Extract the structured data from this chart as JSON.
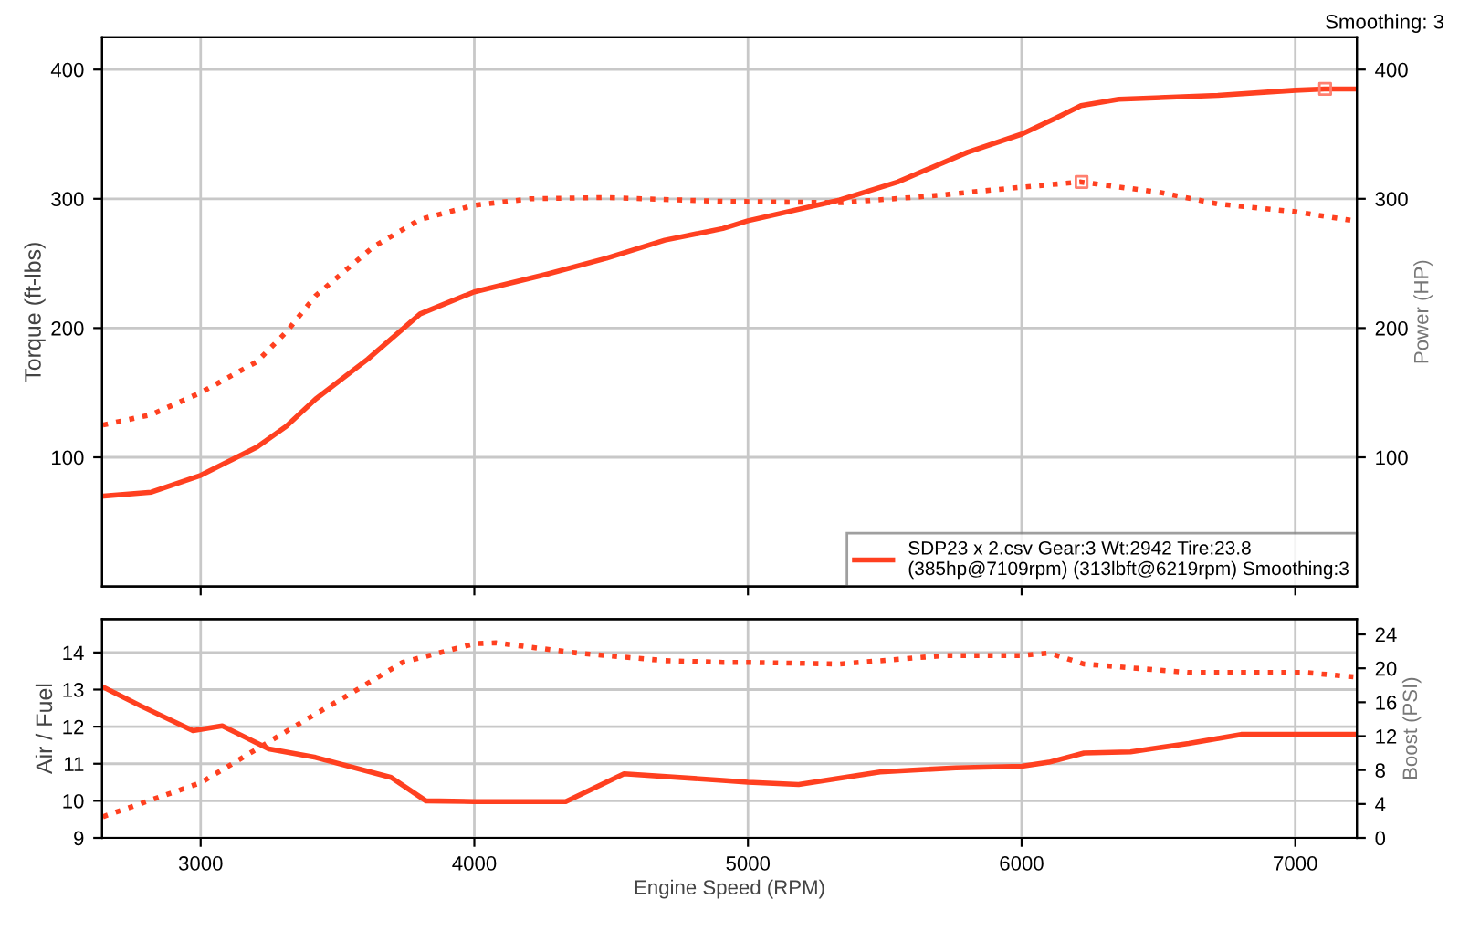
{
  "chart_data": [
    {
      "type": "line",
      "ylabel": "Torque (ft-lbs)",
      "y2label": "Power (HP)",
      "xlim": [
        2640,
        7225
      ],
      "xticks": [
        3000,
        4000,
        5000,
        6000,
        7000
      ],
      "ylim": [
        0,
        425
      ],
      "yticks": [
        100,
        200,
        300,
        400
      ],
      "y2lim": [
        0,
        425
      ],
      "y2ticks": [
        100,
        200,
        300,
        400
      ],
      "grid": true,
      "legend": "bottom right",
      "tick_labels": "y",
      "annotations": [
        "Smoothing: 3"
      ],
      "series": [
        {
          "line_style": "dotted",
          "color": "#ff4020",
          "x": [
            2643,
            2820,
            3000,
            3206,
            3313,
            3420,
            3632,
            3802,
            4000,
            4206,
            4483,
            4908,
            5340,
            5660,
            6000,
            6217,
            6504,
            6717,
            7000,
            7213
          ],
          "values": [
            125,
            133,
            150,
            174,
            197,
            225,
            263,
            284,
            295,
            300,
            301,
            298,
            297,
            302,
            309,
            313,
            305,
            296,
            290,
            283
          ]
        },
        {
          "axis": "y2",
          "line_style": "solid",
          "color": "#ff4020",
          "name": "SDP23 x 2.csv Gear:3 Wt:2942 Tire:23.8\n(385hp@7109rpm) (313lbft@6219rpm) Smoothing:3",
          "x": [
            2643,
            2820,
            3000,
            3206,
            3313,
            3420,
            3611,
            3802,
            4000,
            4270,
            4483,
            4696,
            4908,
            5000,
            5334,
            5547,
            5802,
            6000,
            6121,
            6217,
            6355,
            6717,
            7000,
            7106,
            7213
          ],
          "values": [
            70,
            73,
            86,
            108,
            124,
            145,
            176,
            211,
            228,
            242,
            254,
            268,
            277,
            283,
            299,
            313,
            336,
            350,
            362,
            372,
            377,
            380,
            384,
            385,
            385
          ]
        },
        {
          "type": "scatter",
          "marker": "square",
          "color": "#ff8070",
          "x": [
            6219
          ],
          "values": [
            313
          ]
        },
        {
          "type": "scatter",
          "axis": "y2",
          "marker": "square",
          "color": "#ff8070",
          "x": [
            7109
          ],
          "values": [
            385
          ]
        }
      ]
    },
    {
      "type": "line",
      "xlabel": "Engine Speed (RPM)",
      "ylabel": "Air / Fuel",
      "y2label": "Boost (PSI)",
      "xlim": [
        2640,
        7225
      ],
      "xticks": [
        3000,
        4000,
        5000,
        6000,
        7000
      ],
      "ylim": [
        9,
        14.9
      ],
      "yticks": [
        9,
        10,
        11,
        12,
        13,
        14
      ],
      "y2lim": [
        0,
        25.8
      ],
      "y2ticks": [
        0,
        4,
        8,
        12,
        16,
        20,
        24
      ],
      "grid": true,
      "series": [
        {
          "line_style": "solid",
          "color": "#ff4020",
          "x": [
            2643,
            2781,
            2972,
            3079,
            3249,
            3420,
            3696,
            3823,
            4000,
            4334,
            4547,
            4908,
            5000,
            5185,
            5483,
            5760,
            6000,
            6100,
            6228,
            6398,
            6611,
            6802,
            7213
          ],
          "values": [
            13.07,
            12.56,
            11.89,
            12.02,
            11.4,
            11.17,
            10.63,
            10.0,
            9.98,
            9.98,
            10.73,
            10.55,
            10.5,
            10.44,
            10.78,
            10.89,
            10.93,
            11.04,
            11.29,
            11.32,
            11.55,
            11.79,
            11.79
          ]
        },
        {
          "axis": "y2",
          "line_style": "dotted",
          "color": "#ff4020",
          "x": [
            2643,
            3000,
            3377,
            3547,
            3738,
            4000,
            4079,
            4377,
            4696,
            4908,
            5000,
            5334,
            5717,
            6000,
            6100,
            6228,
            6611,
            7036,
            7213
          ],
          "values": [
            2.5,
            6.5,
            13.8,
            17,
            20.7,
            22.9,
            23.0,
            21.8,
            20.9,
            20.7,
            20.7,
            20.5,
            21.5,
            21.5,
            21.8,
            20.5,
            19.5,
            19.5,
            19.0
          ]
        }
      ]
    }
  ]
}
